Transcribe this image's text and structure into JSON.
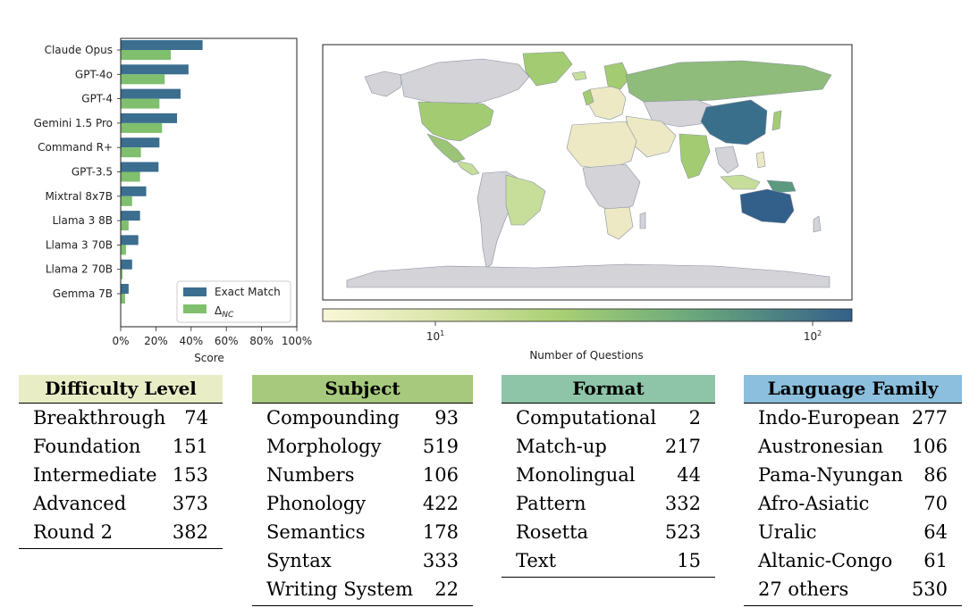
{
  "chart_data": [
    {
      "type": "bar",
      "orientation": "horizontal",
      "categories": [
        "Claude Opus",
        "GPT-4o",
        "GPT-4",
        "Gemini 1.5 Pro",
        "Command R+",
        "GPT-3.5",
        "Mixtral 8x7B",
        "Llama 3 8B",
        "Llama 3 70B",
        "Llama 2 70B",
        "Gemma 7B"
      ],
      "series": [
        {
          "name": "Exact Match",
          "color": "#3b6e8f",
          "values": [
            46.5,
            38.5,
            34,
            32,
            22,
            21.5,
            14.5,
            11,
            10,
            6.5,
            4.5
          ]
        },
        {
          "name": "Δ_NC",
          "color": "#7fbf6e",
          "values": [
            28.5,
            25,
            22,
            23.5,
            11.5,
            11,
            6.5,
            4.5,
            3,
            1,
            2.5
          ]
        }
      ],
      "xlabel": "Score",
      "xticks": [
        "0%",
        "20%",
        "40%",
        "60%",
        "80%",
        "100%"
      ],
      "xlim": [
        0,
        100
      ],
      "legend": {
        "placement": "bottom-right",
        "labels": [
          "Exact Match",
          "Δ"
        ],
        "sub": "NC"
      }
    },
    {
      "type": "map",
      "colorbar_label": "Number of Questions",
      "colorbar_ticks": [
        {
          "base": "10",
          "exp": "1"
        },
        {
          "base": "10",
          "exp": "2"
        }
      ],
      "scale": "log",
      "colors": {
        "low": "#f8f5d6",
        "mid": "#a3cc72",
        "high": "#33608a",
        "nodata": "#d3d3d8",
        "border": "#8890a0"
      }
    }
  ],
  "tables": {
    "difficulty": {
      "title": "Difficulty Level",
      "color": "#e9edc6",
      "rows": [
        [
          "Breakthrough",
          "74"
        ],
        [
          "Foundation",
          "151"
        ],
        [
          "Intermediate",
          "153"
        ],
        [
          "Advanced",
          "373"
        ],
        [
          "Round 2",
          "382"
        ]
      ]
    },
    "subject": {
      "title": "Subject",
      "color": "#a6c97d",
      "rows": [
        [
          "Compounding",
          "93"
        ],
        [
          "Morphology",
          "519"
        ],
        [
          "Numbers",
          "106"
        ],
        [
          "Phonology",
          "422"
        ],
        [
          "Semantics",
          "178"
        ],
        [
          "Syntax",
          "333"
        ],
        [
          "Writing System",
          "22"
        ]
      ]
    },
    "format": {
      "title": "Format",
      "color": "#8ec4a8",
      "rows": [
        [
          "Computational",
          "2"
        ],
        [
          "Match-up",
          "217"
        ],
        [
          "Monolingual",
          "44"
        ],
        [
          "Pattern",
          "332"
        ],
        [
          "Rosetta",
          "523"
        ],
        [
          "Text",
          "15"
        ]
      ]
    },
    "language": {
      "title": "Language Family",
      "color": "#8cbfdd",
      "rows": [
        [
          "Indo-European",
          "277"
        ],
        [
          "Austronesian",
          "106"
        ],
        [
          "Pama-Nyungan",
          "86"
        ],
        [
          "Afro-Asiatic",
          "70"
        ],
        [
          "Uralic",
          "64"
        ],
        [
          "Altanic-Congo",
          "61"
        ],
        [
          "27 others",
          "530"
        ]
      ]
    }
  }
}
